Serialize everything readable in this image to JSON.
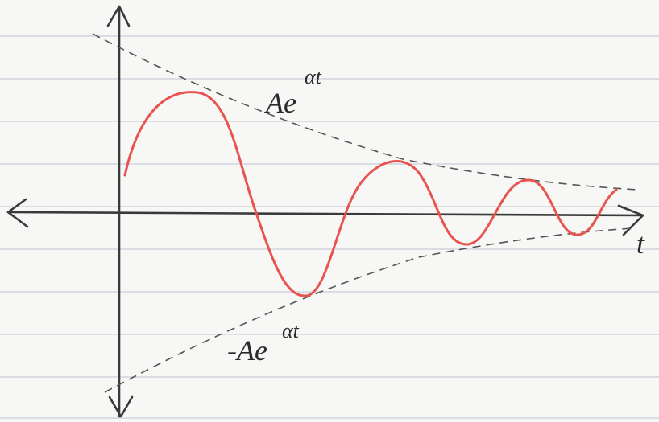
{
  "labels": {
    "upper_envelope": {
      "base": "Ae",
      "exponent": "αt"
    },
    "lower_envelope": {
      "base": "-Ae",
      "exponent": "αt"
    },
    "axis": "t"
  }
}
